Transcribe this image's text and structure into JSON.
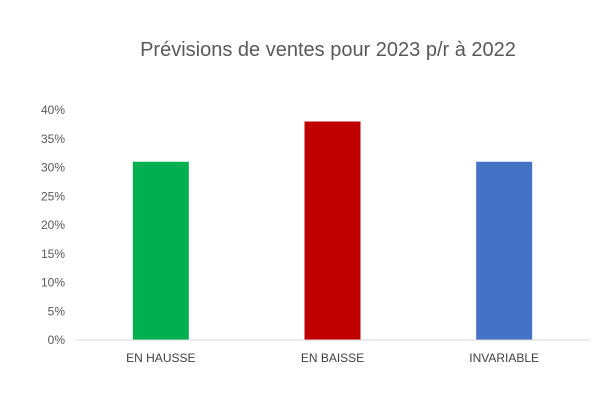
{
  "chart_data": {
    "type": "bar",
    "title": "Prévisions de ventes pour 2023 p/r à 2022",
    "xlabel": "",
    "ylabel": "",
    "categories": [
      "EN HAUSSE",
      "EN BAISSE",
      "INVARIABLE"
    ],
    "values": [
      0.31,
      0.38,
      0.31
    ],
    "bar_colors": [
      "#00b050",
      "#c00000",
      "#4472c4"
    ],
    "ylim": [
      0,
      0.4
    ],
    "y_ticks": [
      0,
      0.05,
      0.1,
      0.15,
      0.2,
      0.25,
      0.3,
      0.35,
      0.4
    ],
    "y_tick_labels": [
      "0%",
      "5%",
      "10%",
      "15%",
      "20%",
      "25%",
      "30%",
      "35%",
      "40%"
    ],
    "grid": false,
    "legend": "none"
  }
}
